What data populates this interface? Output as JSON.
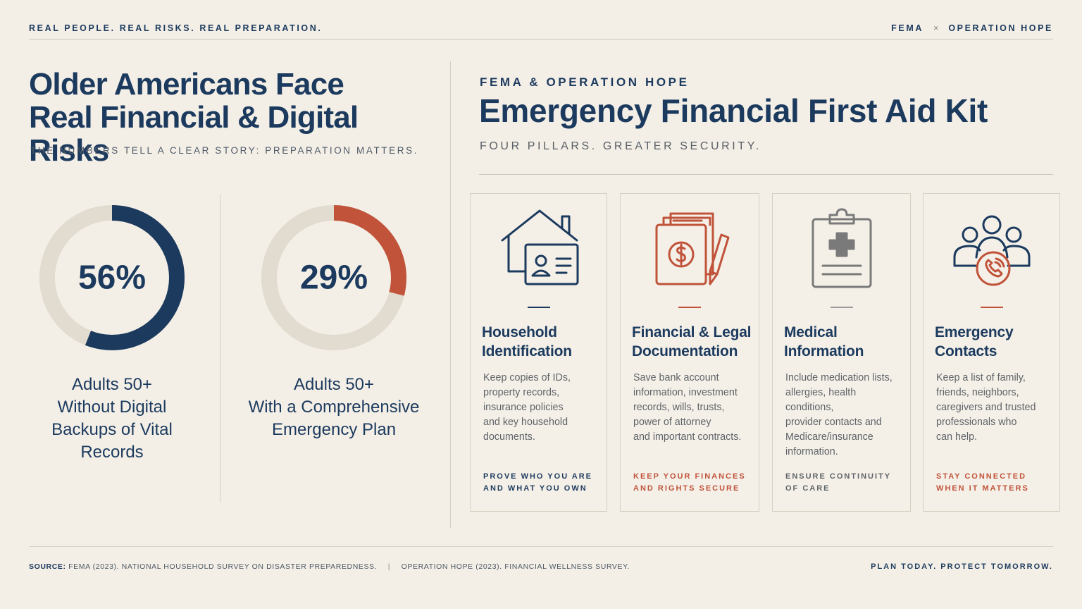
{
  "header": {
    "tagline": "REAL PEOPLE. REAL RISKS. REAL PREPARATION.",
    "partner_left": "FEMA",
    "partner_sep": "×",
    "partner_right": "OPERATION HOPE"
  },
  "left": {
    "title_line1": "Older Americans Face",
    "title_line2": "Real Financial & Digital Risks",
    "subtitle": "THE NUMBERS TELL A CLEAR STORY: PREPARATION MATTERS.",
    "stats": [
      {
        "percent_value": 56,
        "percent_label": "56%",
        "label_lines": [
          "Adults 50+",
          "Without Digital",
          "Backups of Vital",
          "Records"
        ],
        "ring_color": "#1c3a5e"
      },
      {
        "percent_value": 29,
        "percent_label": "29%",
        "label_lines": [
          "Adults 50+",
          "With a Comprehensive",
          "Emergency Plan"
        ],
        "ring_color": "#c0533a"
      }
    ]
  },
  "right": {
    "kicker": "FEMA & OPERATION HOPE",
    "title": "Emergency Financial First Aid Kit",
    "subtitle": "FOUR PILLARS. GREATER SECURITY.",
    "cards": [
      {
        "icon": "house-id-icon",
        "accent": "#1c3a5e",
        "title_lines": [
          "Household",
          "Identification"
        ],
        "desc_lines": [
          "Keep copies of IDs,",
          "property records,",
          "insurance policies",
          "and key household",
          "documents."
        ],
        "tag_lines": [
          "PROVE WHO YOU ARE",
          "AND WHAT YOU OWN"
        ]
      },
      {
        "icon": "financial-documents-icon",
        "accent": "#c0533a",
        "title_lines": [
          "Financial & Legal",
          "Documentation"
        ],
        "desc_lines": [
          "Save bank account",
          "information, investment",
          "records, wills, trusts,",
          "power of attorney",
          "and important contracts."
        ],
        "tag_lines": [
          "KEEP YOUR FINANCES",
          "AND RIGHTS SECURE"
        ]
      },
      {
        "icon": "medical-clipboard-icon",
        "accent": "#7a7a7a",
        "title_lines": [
          "Medical",
          "Information"
        ],
        "desc_lines": [
          "Include medication lists,",
          "allergies, health conditions,",
          "provider contacts and",
          "Medicare/insurance",
          "information."
        ],
        "tag_lines": [
          "ENSURE CONTINUITY",
          "OF CARE"
        ]
      },
      {
        "icon": "contacts-phone-icon",
        "accent": "#c0533a",
        "title_lines": [
          "Emergency",
          "Contacts"
        ],
        "desc_lines": [
          "Keep a list of family,",
          "friends, neighbors,",
          "caregivers and trusted",
          "professionals who",
          "can help."
        ],
        "tag_lines": [
          "STAY CONNECTED",
          "WHEN IT MATTERS"
        ]
      }
    ]
  },
  "footer": {
    "source_label": "SOURCE:",
    "source_1": "FEMA (2023). NATIONAL HOUSEHOLD SURVEY ON DISASTER PREPAREDNESS.",
    "source_sep": "|",
    "source_2": "OPERATION HOPE (2023). FINANCIAL WELLNESS SURVEY.",
    "tagline": "PLAN TODAY. PROTECT TOMORROW."
  },
  "colors": {
    "navy": "#1c3a5e",
    "rust": "#c0533a",
    "ring_track": "#e2dbcf",
    "background": "#f3efe7"
  }
}
